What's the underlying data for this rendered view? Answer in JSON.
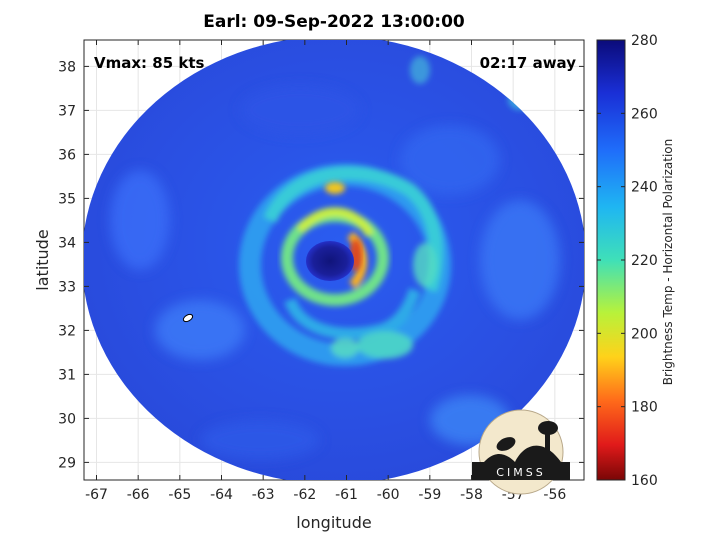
{
  "title": "Earl: 09-Sep-2022 13:00:00",
  "annotations": {
    "vmax": "Vmax: 85 kts",
    "away": "02:17 away"
  },
  "axes": {
    "xlabel": "longitude",
    "ylabel": "latitude",
    "xlim": [
      -67.3,
      -55.3
    ],
    "ylim": [
      28.6,
      38.6
    ],
    "xticks": [
      "-67",
      "-66",
      "-65",
      "-64",
      "-63",
      "-62",
      "-61",
      "-60",
      "-59",
      "-58",
      "-57",
      "-56"
    ],
    "yticks": [
      "29",
      "30",
      "31",
      "32",
      "33",
      "34",
      "35",
      "36",
      "37",
      "38"
    ]
  },
  "colorbar": {
    "label": "Brightness Temp - Horizontal Polarization",
    "range": [
      160,
      280
    ],
    "ticks": [
      "280",
      "260",
      "240",
      "220",
      "200",
      "180",
      "160"
    ]
  },
  "logo": {
    "text": "CIMSS"
  },
  "image": {
    "storm_center_lon": -61.3,
    "storm_center_lat": 33.6,
    "eye_min_temp": 265,
    "eyewall_max_warm": 180,
    "swath_center_lon": -61.2,
    "swath_center_lat": 33.2
  },
  "colors": {
    "background_field": "#2f4fe0",
    "eye": "#1a1f8f",
    "eyewall_warm": "#e0501a",
    "band": "#2ec8c8"
  }
}
